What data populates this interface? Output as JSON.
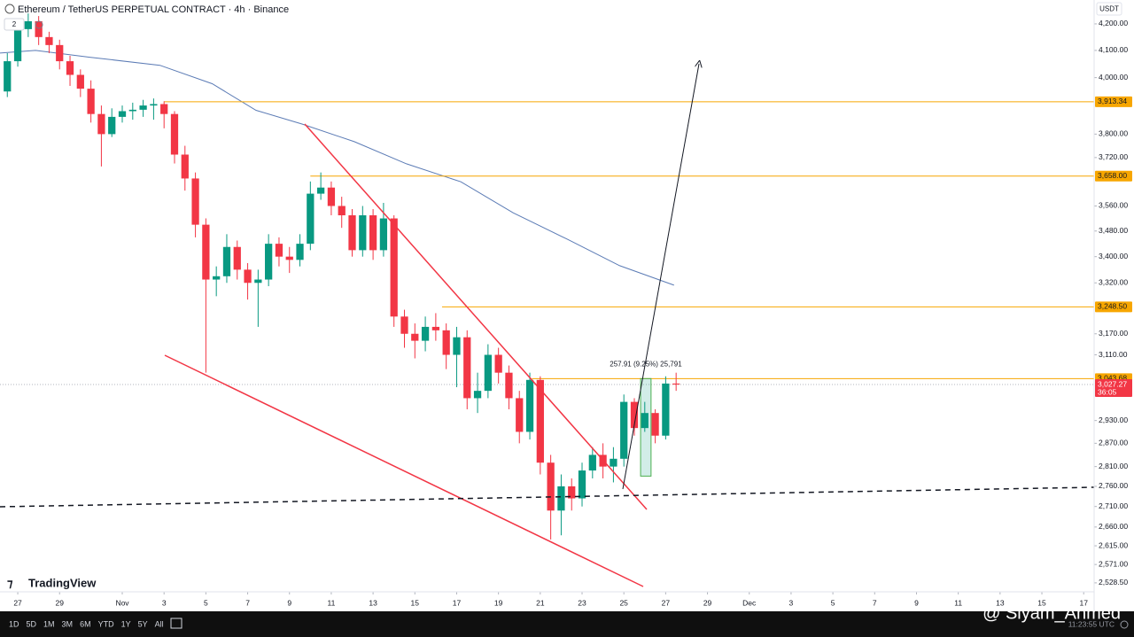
{
  "chart_data": {
    "type": "candlestick",
    "title": "Ethereum / TetherUS PERPETUAL CONTRACT · 4h · Binance",
    "indicator_count": 2,
    "currency": "USDT",
    "log_scale": true,
    "grid": false,
    "ylim": [
      2508,
      4292
    ],
    "yticks": [
      {
        "value": 4200,
        "label": "4,200.00"
      },
      {
        "value": 4100,
        "label": "4,100.00"
      },
      {
        "value": 4000,
        "label": "4,000.00"
      },
      {
        "value": 3800,
        "label": "3,800.00"
      },
      {
        "value": 3720,
        "label": "3,720.00"
      },
      {
        "value": 3560,
        "label": "3,560.00"
      },
      {
        "value": 3480,
        "label": "3,480.00"
      },
      {
        "value": 3400,
        "label": "3,400.00"
      },
      {
        "value": 3320,
        "label": "3,320.00"
      },
      {
        "value": 3170,
        "label": "3,170.00"
      },
      {
        "value": 3110,
        "label": "3,110.00"
      },
      {
        "value": 2930,
        "label": "2,930.00"
      },
      {
        "value": 2870,
        "label": "2,870.00"
      },
      {
        "value": 2810,
        "label": "2,810.00"
      },
      {
        "value": 2760,
        "label": "2,760.00"
      },
      {
        "value": 2710,
        "label": "2,710.00"
      },
      {
        "value": 2660,
        "label": "2,660.00"
      },
      {
        "value": 2615,
        "label": "2,615.00"
      },
      {
        "value": 2571,
        "label": "2,571.00"
      },
      {
        "value": 2528.5,
        "label": "2,528.50"
      }
    ],
    "xlim": [
      -0.85,
      51.5
    ],
    "xticks": [
      {
        "value": 0,
        "label": "27"
      },
      {
        "value": 2,
        "label": "29"
      },
      {
        "value": 5,
        "label": "Nov"
      },
      {
        "value": 7,
        "label": "3"
      },
      {
        "value": 9,
        "label": "5"
      },
      {
        "value": 11,
        "label": "7"
      },
      {
        "value": 13,
        "label": "9"
      },
      {
        "value": 15,
        "label": "11"
      },
      {
        "value": 17,
        "label": "13"
      },
      {
        "value": 19,
        "label": "15"
      },
      {
        "value": 21,
        "label": "17"
      },
      {
        "value": 23,
        "label": "19"
      },
      {
        "value": 25,
        "label": "21"
      },
      {
        "value": 27,
        "label": "23"
      },
      {
        "value": 29,
        "label": "25"
      },
      {
        "value": 31,
        "label": "27"
      },
      {
        "value": 33,
        "label": "29"
      },
      {
        "value": 35,
        "label": "Dec"
      },
      {
        "value": 37,
        "label": "3"
      },
      {
        "value": 39,
        "label": "5"
      },
      {
        "value": 41,
        "label": "7"
      },
      {
        "value": 43,
        "label": "9"
      },
      {
        "value": 45,
        "label": "11"
      },
      {
        "value": 47,
        "label": "13"
      },
      {
        "value": 49,
        "label": "15"
      },
      {
        "value": 51,
        "label": "17"
      }
    ],
    "up_color": "#089981",
    "down_color": "#f23645",
    "x": [
      -0.5,
      0,
      0.5,
      1,
      1.5,
      2,
      2.5,
      3,
      3.5,
      4,
      4.5,
      5,
      5.5,
      6,
      6.5,
      7,
      7.5,
      8,
      8.5,
      9,
      9.5,
      10,
      10.5,
      11,
      11.5,
      12,
      12.5,
      13,
      13.5,
      14,
      14.5,
      15,
      15.5,
      16,
      16.5,
      17,
      17.5,
      18,
      18.5,
      19,
      19.5,
      20,
      20.5,
      21,
      21.5,
      22,
      22.5,
      23,
      23.5,
      24,
      24.5,
      25,
      25.5,
      26,
      26.5,
      27,
      27.5,
      28,
      28.5,
      29,
      29.5,
      30,
      30.5,
      31,
      31.5
    ],
    "open": [
      3950,
      4060,
      4180,
      4210,
      4150,
      4120,
      4060,
      4010,
      3960,
      3870,
      3800,
      3860,
      3880,
      3885,
      3900,
      3905,
      3870,
      3730,
      3650,
      3500,
      3330,
      3340,
      3430,
      3360,
      3320,
      3330,
      3440,
      3400,
      3390,
      3440,
      3600,
      3620,
      3560,
      3530,
      3420,
      3530,
      3420,
      3520,
      3220,
      3170,
      3150,
      3190,
      3180,
      3110,
      3160,
      2990,
      3010,
      3110,
      3060,
      2990,
      2900,
      3040,
      2820,
      2700,
      2760,
      2730,
      2800,
      2840,
      2810,
      2830,
      2980,
      2910,
      2950,
      2890,
      3030
    ],
    "high": [
      4090,
      4200,
      4240,
      4230,
      4170,
      4140,
      4080,
      4030,
      3990,
      3900,
      3890,
      3900,
      3910,
      3920,
      3925,
      3915,
      3880,
      3760,
      3670,
      3520,
      3370,
      3470,
      3450,
      3380,
      3360,
      3470,
      3460,
      3430,
      3470,
      3640,
      3670,
      3640,
      3590,
      3550,
      3560,
      3550,
      3570,
      3530,
      3240,
      3200,
      3220,
      3230,
      3200,
      3190,
      3180,
      3060,
      3140,
      3130,
      3080,
      3010,
      3060,
      3050,
      2840,
      2790,
      2780,
      2820,
      2860,
      2870,
      2860,
      3000,
      2990,
      2980,
      2960,
      3050,
      3060
    ],
    "low": [
      3930,
      4040,
      4150,
      4120,
      4090,
      4030,
      3970,
      3930,
      3840,
      3690,
      3790,
      3840,
      3850,
      3860,
      3850,
      3820,
      3700,
      3610,
      3460,
      3060,
      3280,
      3320,
      3330,
      3270,
      3190,
      3310,
      3370,
      3350,
      3370,
      3420,
      3580,
      3530,
      3490,
      3400,
      3400,
      3390,
      3400,
      3190,
      3130,
      3100,
      3120,
      3150,
      3070,
      3020,
      2960,
      2950,
      2990,
      3030,
      2960,
      2870,
      2880,
      2790,
      2630,
      2640,
      2700,
      2710,
      2780,
      2780,
      2770,
      2810,
      2890,
      2900,
      2870,
      2880,
      3010
    ],
    "close": [
      4060,
      4180,
      4210,
      4150,
      4120,
      4060,
      4010,
      3960,
      3870,
      3800,
      3860,
      3880,
      3885,
      3900,
      3905,
      3870,
      3730,
      3650,
      3500,
      3330,
      3340,
      3430,
      3360,
      3320,
      3330,
      3440,
      3400,
      3390,
      3440,
      3600,
      3620,
      3560,
      3530,
      3420,
      3530,
      3420,
      3520,
      3220,
      3170,
      3150,
      3190,
      3180,
      3110,
      3160,
      2990,
      3010,
      3110,
      3060,
      2990,
      2900,
      3040,
      2820,
      2700,
      2760,
      2730,
      2800,
      2840,
      2810,
      2830,
      2980,
      2910,
      2950,
      2890,
      3030,
      3027.27
    ],
    "ma": {
      "color": "#5b7bb5",
      "x": [
        -0.85,
        0.85,
        3.4,
        6.8,
        9.3,
        11.4,
        13.6,
        16.1,
        18.6,
        21.2,
        23.7,
        26.3,
        28.8,
        31.4
      ],
      "values": [
        4090,
        4100,
        4075,
        4045,
        3978,
        3883,
        3835,
        3774,
        3699,
        3639,
        3538,
        3454,
        3372,
        3313
      ]
    },
    "price_lines": [
      {
        "value": 3913.34,
        "label": "3,913.34",
        "from": 7
      },
      {
        "value": 3658,
        "label": "3,658.00",
        "from": 14
      },
      {
        "value": 3248.5,
        "label": "3,248.50",
        "from": 20.3
      },
      {
        "value": 3043.68,
        "label": "3,043.68",
        "from": 24.6
      }
    ],
    "price_line_color": "#f7a600",
    "last_price": {
      "value": 3027.27,
      "label": "3,027.27",
      "countdown": "36:05"
    },
    "measure": {
      "label": "257.91 (9.25%) 25,791",
      "change": 257.91,
      "top": 3043.68,
      "x": [
        29.8,
        30.3
      ]
    }
  },
  "ui": {
    "brand": "TradingView",
    "ranges": [
      "1D",
      "5D",
      "1M",
      "3M",
      "6M",
      "YTD",
      "1Y",
      "5Y",
      "All"
    ],
    "clock": "11:23:55 UTC",
    "watermark": "@ Siyam_Ahmed"
  }
}
